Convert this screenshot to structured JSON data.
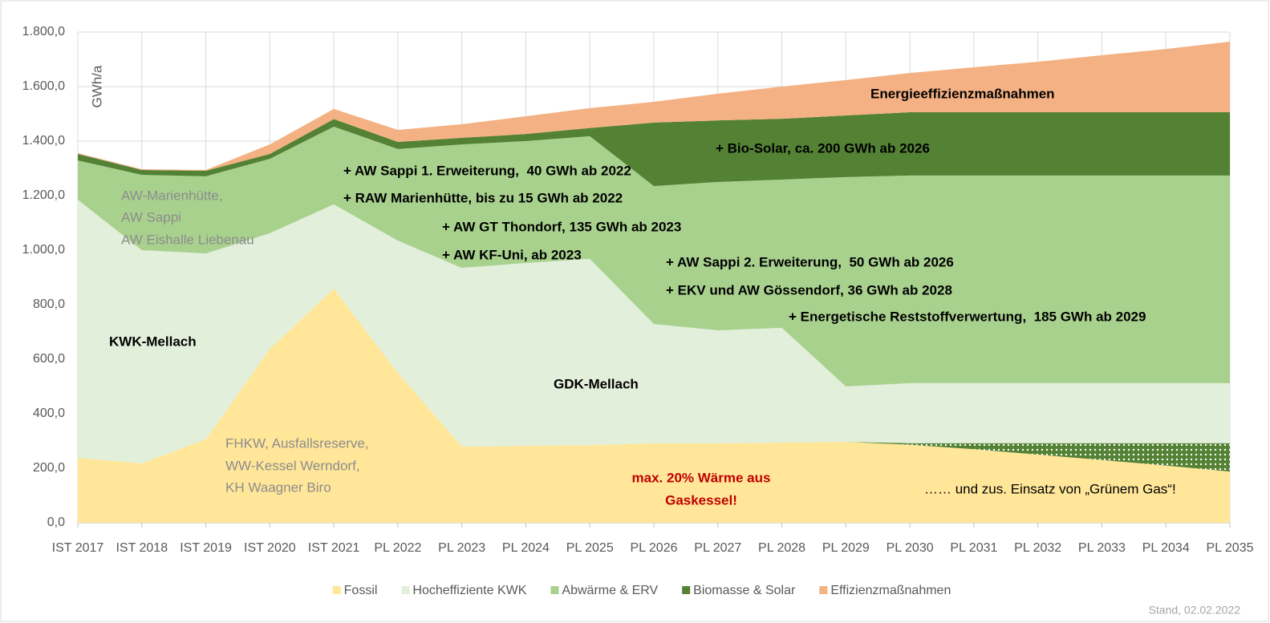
{
  "chart_data": {
    "type": "stacked_area",
    "y_label": "GWh/a",
    "categories": [
      "IST 2017",
      "IST 2018",
      "IST 2019",
      "IST 2020",
      "IST 2021",
      "PL 2022",
      "PL 2023",
      "PL 2024",
      "PL 2025",
      "PL 2026",
      "PL 2027",
      "PL 2028",
      "PL 2029",
      "PL 2030",
      "PL 2031",
      "PL 2032",
      "PL 2033",
      "PL 2034",
      "PL 2035"
    ],
    "series": [
      {
        "name": "Fossil",
        "color": "#ffe699",
        "values": [
          238,
          218,
          306,
          638,
          859,
          550,
          279,
          282,
          285,
          291,
          291,
          294,
          297,
          286,
          270,
          250,
          230,
          210,
          188
        ]
      },
      {
        "color": "#548235",
        "hatch": true,
        "values": [
          0,
          0,
          0,
          0,
          0,
          0,
          0,
          0,
          0,
          0,
          0,
          0,
          0,
          6,
          22,
          42,
          62,
          82,
          104
        ]
      },
      {
        "name": "Hocheffiziente KWK",
        "color": "#e2efda",
        "values": [
          947,
          782,
          682,
          424,
          309,
          485,
          656,
          671,
          683,
          438,
          415,
          421,
          203,
          220,
          220,
          220,
          220,
          220,
          220
        ]
      },
      {
        "name": "Abwärme & ERV",
        "color": "#a9d18e",
        "values": [
          144,
          276,
          283,
          273,
          285,
          336,
          453,
          447,
          450,
          506,
          544,
          544,
          768,
          762,
          762,
          762,
          762,
          762,
          762
        ]
      },
      {
        "name": "Biomasse & Solar",
        "color": "#548235",
        "values": [
          24,
          18,
          20,
          18,
          28,
          26,
          24,
          26,
          30,
          233,
          226,
          223,
          226,
          232,
          232,
          232,
          232,
          232,
          232
        ]
      },
      {
        "name": "Effizienzmaßnahmen",
        "color": "#f4b183",
        "values": [
          3,
          3,
          3,
          35,
          37,
          44,
          50,
          65,
          73,
          76,
          98,
          118,
          130,
          144,
          165,
          185,
          209,
          232,
          259
        ]
      }
    ],
    "ylim": [
      0,
      1800
    ],
    "yticks": [
      {
        "value": 0,
        "label": "0,0"
      },
      {
        "value": 200,
        "label": "200,0"
      },
      {
        "value": 400,
        "label": "400,0"
      },
      {
        "value": 600,
        "label": "600,0"
      },
      {
        "value": 800,
        "label": "800,0"
      },
      {
        "value": 1000,
        "label": "1.000,0"
      },
      {
        "value": 1200,
        "label": "1.200,0"
      },
      {
        "value": 1400,
        "label": "1.400,0"
      },
      {
        "value": 1600,
        "label": "1.600,0"
      },
      {
        "value": 1800,
        "label": "1.800,0"
      }
    ],
    "grid": true,
    "legend": "bottom",
    "annotations": [
      "AW-Marienhütte,",
      "AW Sappi",
      "AW Eishalle Liebenau",
      "KWK-Mellach",
      "FHKW, Ausfallsreserve,",
      "WW-Kessel Werndorf,",
      "KH Waagner Biro",
      "GDK-Mellach",
      "max. 20% Wärme aus",
      "Gaskessel!",
      "…… und zus. Einsatz von „Grünem Gas“!",
      "+ AW Sappi 1. Erweiterung,  40 GWh ab 2022",
      "+ RAW Marienhütte, bis zu 15 GWh ab 2022",
      "+ AW GT Thondorf, 135 GWh ab 2023",
      "+ AW KF-Uni, ab 2023",
      "+ AW Sappi 2. Erweiterung,  50 GWh ab 2026",
      "+ EKV und AW Gössendorf, 36 GWh ab 2028",
      "+ Energetische Reststoffverwertung,  185 GWh ab 2029",
      "+ Bio-Solar, ca. 200 GWh ab 2026",
      "Energieeffizienzmaßnahmen"
    ],
    "footnote": "Stand, 02.02.2022"
  }
}
